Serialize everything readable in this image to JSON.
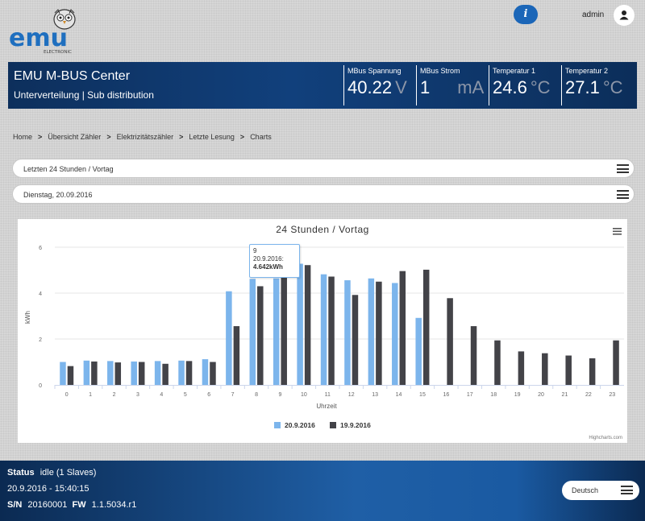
{
  "header": {
    "logo_text": "emu",
    "logo_subtext": "ELECTRONIC",
    "user_name": "admin",
    "info_icon": "info-icon",
    "user_icon": "user-icon"
  },
  "banner": {
    "title": "EMU M-BUS Center",
    "subtitle": "Unterverteilung | Sub distribution",
    "metrics": [
      {
        "label": "MBus Spannung",
        "value": "40.22",
        "unit": "V"
      },
      {
        "label": "MBus Strom",
        "value": "1",
        "unit": "mA"
      },
      {
        "label": "Temperatur 1",
        "value": "24.6",
        "unit": "°C"
      },
      {
        "label": "Temperatur 2",
        "value": "27.1",
        "unit": "°C"
      }
    ]
  },
  "breadcrumb": [
    "Home",
    "Übersicht Zähler",
    "Elektrizitätszähler",
    "Letzte Lesung",
    "Charts"
  ],
  "breadcrumb_separator": ">",
  "period_select": {
    "value": "Letzten 24 Stunden / Vortag"
  },
  "date_select": {
    "value": "Dienstag, 20.09.2016"
  },
  "tooltip": {
    "hour": "9",
    "date": "20.9.2016:",
    "value": "4.642kWh"
  },
  "chart_data": {
    "type": "bar",
    "title": "24 Stunden / Vortag",
    "xlabel": "Uhrzeit",
    "ylabel": "kWh",
    "ylim": [
      0,
      6
    ],
    "yticks": [
      0,
      2,
      4,
      6
    ],
    "grid": true,
    "legend": "bottom-center",
    "credits": "Highcharts.com",
    "categories": [
      "0",
      "1",
      "2",
      "3",
      "4",
      "5",
      "6",
      "7",
      "8",
      "9",
      "10",
      "11",
      "12",
      "13",
      "14",
      "15",
      "16",
      "17",
      "18",
      "19",
      "20",
      "21",
      "22",
      "23"
    ],
    "series": [
      {
        "name": "20.9.2016",
        "color": "#7cb5ec",
        "values": [
          1.0,
          1.06,
          1.04,
          1.02,
          1.04,
          1.06,
          1.12,
          4.08,
          4.62,
          4.642,
          5.28,
          4.82,
          4.56,
          4.64,
          4.44,
          2.92,
          null,
          null,
          null,
          null,
          null,
          null,
          null,
          null
        ]
      },
      {
        "name": "19.9.2016",
        "color": "#434348",
        "values": [
          0.82,
          1.02,
          0.98,
          1.0,
          0.92,
          1.04,
          1.0,
          2.56,
          4.3,
          5.18,
          5.22,
          4.72,
          3.92,
          4.5,
          4.96,
          5.02,
          3.78,
          2.56,
          1.94,
          1.46,
          1.38,
          1.28,
          1.16,
          1.94
        ]
      }
    ]
  },
  "footer": {
    "status_label": "Status",
    "status_value": "idle  (1 Slaves)",
    "datetime": "20.9.2016 - 15:40:15",
    "sn_label": "S/N",
    "sn_value": "20160001",
    "fw_label": "FW",
    "fw_value": "1.1.5034.r1",
    "language": "Deutsch"
  },
  "colors": {
    "accent": "#1b66b8",
    "banner": "#11407c",
    "series1": "#7cb5ec",
    "series2": "#434348"
  }
}
